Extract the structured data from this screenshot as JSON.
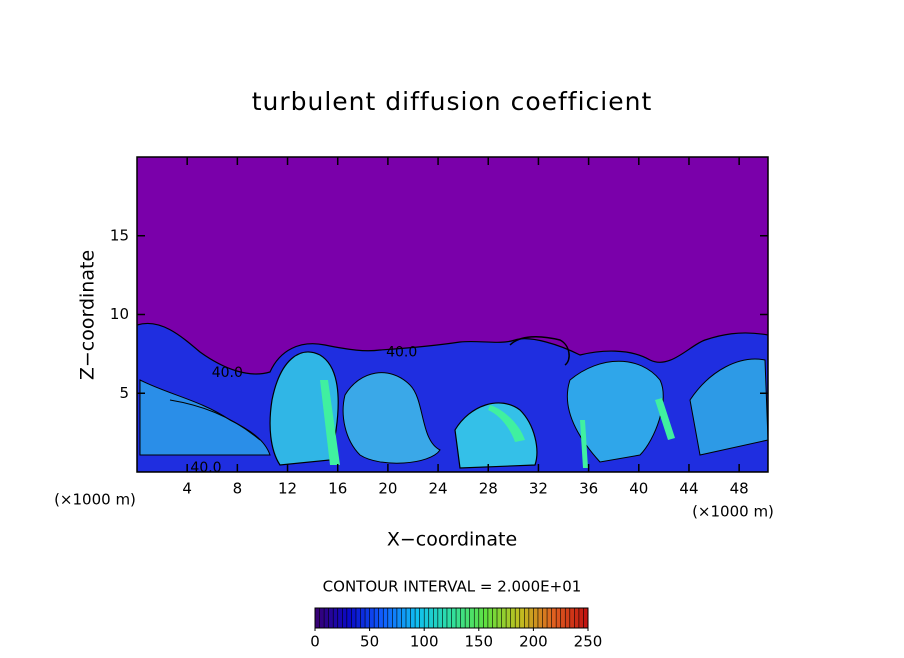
{
  "chart_data": {
    "type": "contour",
    "title": "turbulent diffusion coefficient",
    "xlabel": "X−coordinate",
    "ylabel": "Z−coordinate",
    "x_unit_label": "(×1000 m)",
    "xlim": [
      0,
      50.3
    ],
    "xticks": [
      4,
      8,
      12,
      16,
      20,
      24,
      28,
      32,
      36,
      40,
      44,
      48
    ],
    "ylim": [
      0,
      20
    ],
    "yticks": [
      5,
      10,
      15
    ],
    "contour_labels": [
      {
        "value": 40,
        "label": "40.0",
        "x": 7.2,
        "y": 6.3
      },
      {
        "value": 40,
        "label": "40.0",
        "x": 21.1,
        "y": 7.6
      },
      {
        "value": 40,
        "label": "40.0",
        "x": 5.5,
        "y": 0.25
      }
    ],
    "contour_interval_label": "CONTOUR INTERVAL = 2.000E+01",
    "colorbar": {
      "lim": [
        0,
        250
      ],
      "ticks": [
        0,
        50,
        100,
        150,
        200,
        250
      ],
      "colormap": [
        "#3a0070",
        "#0a0ac8",
        "#1060ff",
        "#10c0f0",
        "#30e0a0",
        "#60e040",
        "#c0c020",
        "#e06020",
        "#c01010"
      ]
    }
  }
}
